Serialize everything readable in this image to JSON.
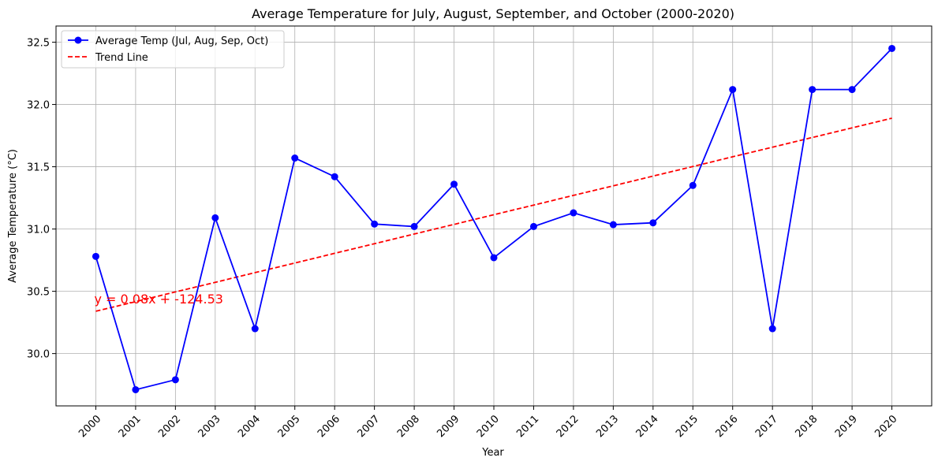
{
  "chart_data": {
    "type": "line",
    "title": "Average Temperature for July, August, September, and October (2000-2020)",
    "xlabel": "Year",
    "ylabel": "Average Temperature (°C)",
    "x": [
      2000,
      2001,
      2002,
      2003,
      2004,
      2005,
      2006,
      2007,
      2008,
      2009,
      2010,
      2011,
      2012,
      2013,
      2014,
      2015,
      2016,
      2017,
      2018,
      2019,
      2020
    ],
    "x_tick_labels": [
      "2000",
      "2001",
      "2002",
      "2003",
      "2004",
      "2005",
      "2006",
      "2007",
      "2008",
      "2009",
      "2010",
      "2011",
      "2012",
      "2013",
      "2014",
      "2015",
      "2016",
      "2017",
      "2018",
      "2019",
      "2020"
    ],
    "y_ticks": [
      30.0,
      30.5,
      31.0,
      31.5,
      32.0,
      32.5
    ],
    "y_tick_labels": [
      "30.0",
      "30.5",
      "31.0",
      "31.5",
      "32.0",
      "32.5"
    ],
    "xlim": [
      1999.0,
      2021.0
    ],
    "ylim": [
      29.58,
      32.63
    ],
    "grid": true,
    "legend_position": "upper-left",
    "series": [
      {
        "name": "Average Temp (Jul, Aug, Sep, Oct)",
        "color": "#0000ff",
        "style": "solid",
        "marker": "circle",
        "values": [
          30.78,
          29.71,
          29.79,
          31.09,
          30.2,
          31.57,
          31.42,
          31.04,
          31.02,
          31.36,
          30.77,
          31.02,
          31.13,
          31.035,
          31.05,
          31.35,
          32.12,
          30.2,
          32.12,
          32.12,
          32.45
        ]
      },
      {
        "name": "Trend Line",
        "color": "#ff0000",
        "style": "dashed",
        "marker": "none",
        "values": [
          30.34,
          30.417,
          30.495,
          30.572,
          30.65,
          30.727,
          30.805,
          30.882,
          30.96,
          31.037,
          31.115,
          31.192,
          31.27,
          31.347,
          31.425,
          31.502,
          31.58,
          31.657,
          31.735,
          31.812,
          31.89
        ]
      }
    ],
    "annotation": {
      "text": "y = 0.08x + -124.53",
      "color": "#ff0000",
      "x": 2000,
      "y": 30.44
    }
  }
}
